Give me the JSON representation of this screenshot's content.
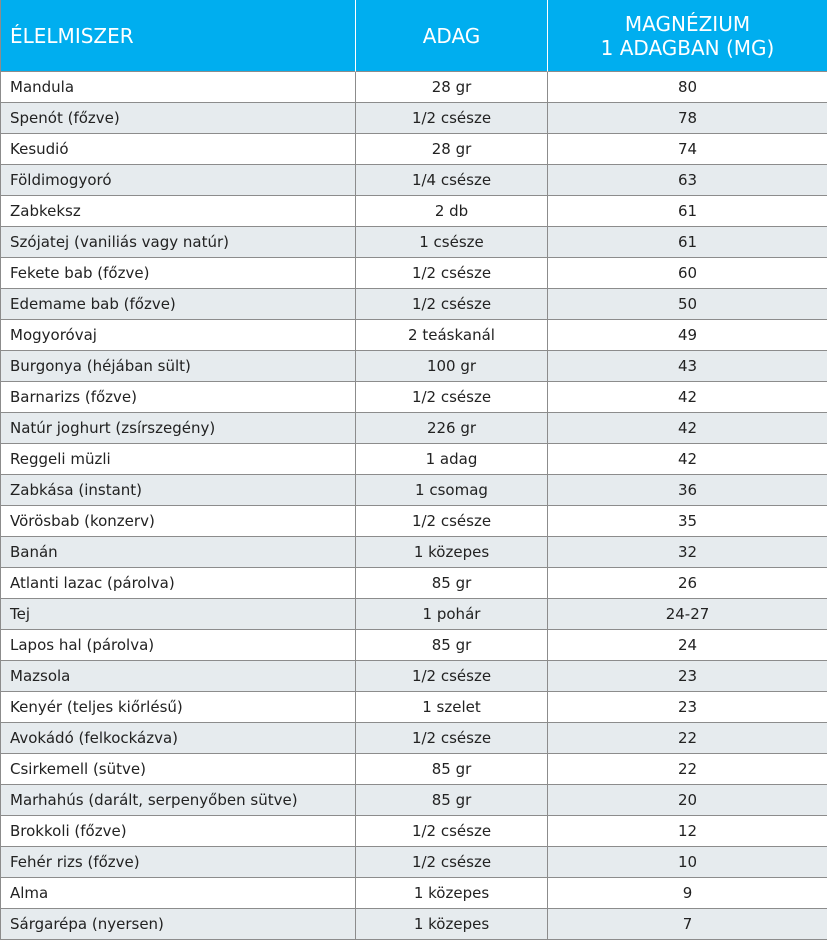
{
  "table": {
    "header": [
      "ÉLELMISZER",
      "ADAG",
      [
        "MAGNÉZIUM",
        "1 ADAGBAN (MG)"
      ]
    ],
    "rows": [
      [
        "Mandula",
        "28 gr",
        80
      ],
      [
        "Spenót (főzve)",
        "1/2 csésze",
        78
      ],
      [
        "Kesudió",
        "28 gr",
        74
      ],
      [
        "Földimogyoró",
        "1/4 csésze",
        63
      ],
      [
        "Zabkeksz",
        "2 db",
        61
      ],
      [
        "Szójatej (vaniliás vagy natúr)",
        "1 csésze",
        61
      ],
      [
        "Fekete bab (főzve)",
        "1/2 csésze",
        60
      ],
      [
        "Edemame bab (főzve)",
        "1/2 csésze",
        50
      ],
      [
        "Mogyoróvaj",
        "2 teáskanál",
        49
      ],
      [
        "Burgonya (héjában sült)",
        "100 gr",
        43
      ],
      [
        "Barnarizs (főzve)",
        "1/2 csésze",
        42
      ],
      [
        "Natúr joghurt (zsírszegény)",
        "226 gr",
        42
      ],
      [
        "Reggeli müzli",
        "1 adag",
        42
      ],
      [
        "Zabkása (instant)",
        "1 csomag",
        36
      ],
      [
        "Vörösbab (konzerv)",
        "1/2 csésze",
        35
      ],
      [
        "Banán",
        "1 közepes",
        32
      ],
      [
        "Atlanti lazac (párolva)",
        "85 gr",
        26
      ],
      [
        "Tej",
        "1 pohár",
        "24-27"
      ],
      [
        "Lapos hal (párolva)",
        "85 gr",
        24
      ],
      [
        "Mazsola",
        "1/2 csésze",
        23
      ],
      [
        "Kenyér (teljes kiőrlésű)",
        "1 szelet",
        23
      ],
      [
        "Avokádó (felkockázva)",
        "1/2 csésze",
        22
      ],
      [
        "Csirkemell (sütve)",
        "85 gr",
        22
      ],
      [
        "Marhahús (darált, serpenyőben sütve)",
        "85 gr",
        20
      ],
      [
        "Brokkoli (főzve)",
        "1/2 csésze",
        12
      ],
      [
        "Fehér rizs (főzve)",
        "1/2 csésze",
        10
      ],
      [
        "Alma",
        "1 közepes",
        9
      ],
      [
        "Sárgarépa (nyersen)",
        "1 közepes",
        7
      ]
    ]
  }
}
